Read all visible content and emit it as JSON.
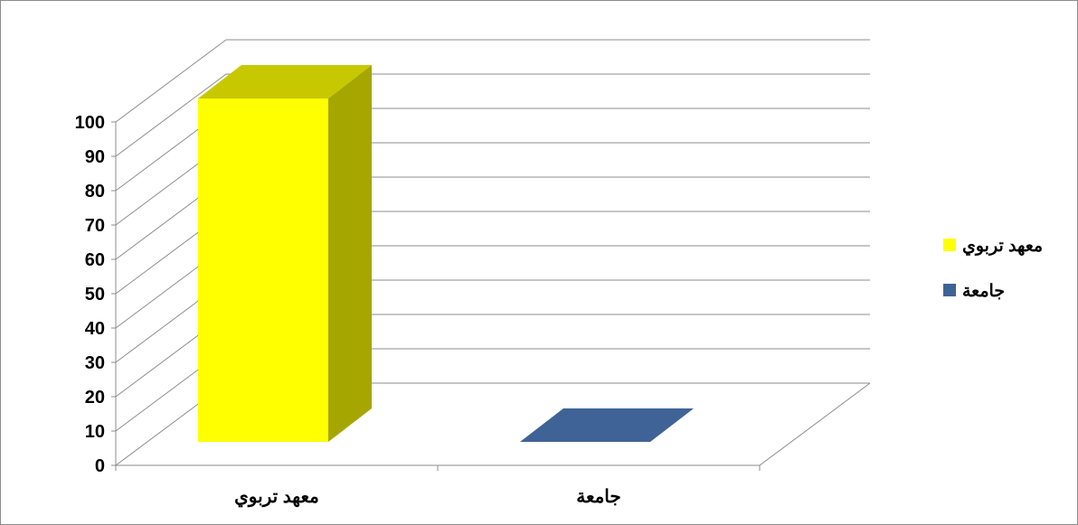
{
  "chart_data": {
    "type": "bar",
    "style": "3d-column",
    "categories": [
      "معهد تربوي",
      "جامعة"
    ],
    "series": [
      {
        "name": "معهد تربوي",
        "values": [
          100,
          0
        ],
        "color": "#FFFF00",
        "side_color": "#A6A600",
        "top_color": "#C8C800"
      },
      {
        "name": "جامعة",
        "values": [
          0,
          0
        ],
        "color": "#3F6396",
        "side_color": "#2E4A72",
        "top_color": "#3F6396"
      }
    ],
    "title": "",
    "xlabel": "",
    "ylabel": "",
    "ylim": [
      0,
      100
    ],
    "yticks": [
      "0",
      "10",
      "20",
      "30",
      "40",
      "50",
      "60",
      "70",
      "80",
      "90",
      "100"
    ],
    "grid": true,
    "legend": "right"
  }
}
